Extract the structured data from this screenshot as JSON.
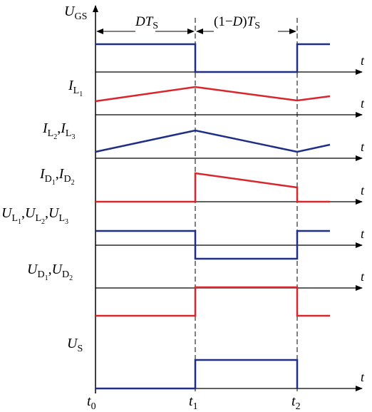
{
  "colors": {
    "blue": "#1f2f86",
    "red": "#d9262e",
    "axis": "#000000"
  },
  "labels": {
    "ugs_main": "U",
    "ugs_sub": "GS",
    "il1_main": "I",
    "il1_sub": "L",
    "il1_subsub": "1",
    "il23_main1": "I",
    "il23_sub1": "L",
    "il23_subsub1": "2",
    "il23_comma": ",",
    "il23_main2": "I",
    "il23_sub2": "L",
    "il23_subsub2": "3",
    "id12_main1": "I",
    "id12_sub1": "D",
    "id12_subsub1": "1",
    "id12_comma": ",",
    "id12_main2": "I",
    "id12_sub2": "D",
    "id12_subsub2": "2",
    "ul_main1": "U",
    "ul_sub1": "L",
    "ul_subsub1": "1",
    "ul_comma1": ",",
    "ul_main2": "U",
    "ul_sub2": "L",
    "ul_subsub2": "2",
    "ul_comma2": ",",
    "ul_main3": "U",
    "ul_sub3": "L",
    "ul_subsub3": "3",
    "ud_main1": "U",
    "ud_sub1": "D",
    "ud_subsub1": "1",
    "ud_comma": ",",
    "ud_main2": "U",
    "ud_sub2": "D",
    "ud_subsub2": "2",
    "us_main": "U",
    "us_sub": "S",
    "t": "t",
    "dts_d": "DT",
    "dts_s": "S",
    "ots_pre": "(1−",
    "ots_d": "D",
    "ots_close": ")",
    "ots_t": "T",
    "ots_s": "S",
    "t0_t": "t",
    "t0_sub": "0",
    "t1_t": "t",
    "t1_sub": "1",
    "t2_t": "t",
    "t2_sub": "2"
  }
}
